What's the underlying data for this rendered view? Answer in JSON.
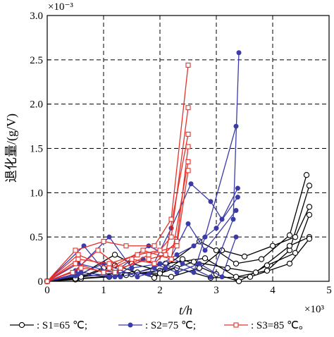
{
  "chart_data": {
    "type": "line",
    "title": "",
    "xlabel": "t/h",
    "ylabel": "退化量/(g/V)",
    "x_multiplier": "×10³",
    "y_multiplier": "×10⁻³",
    "xlim": [
      0,
      5
    ],
    "ylim": [
      0,
      3.0
    ],
    "x_ticks": [
      "0",
      "1",
      "2",
      "3",
      "4",
      "5"
    ],
    "y_ticks": [
      "0",
      "0.5",
      "1.0",
      "1.5",
      "2.0",
      "2.5",
      "3.0"
    ],
    "grid": "dashed",
    "legend_position": "bottom",
    "series": [
      {
        "name": "S1=65 ℃",
        "legend_label": ":  S1=65 ℃;",
        "color": "#000000",
        "marker": "open-circle",
        "lines": [
          [
            [
              0,
              0
            ],
            [
              0.55,
              0.06
            ],
            [
              1.2,
              0.3
            ],
            [
              1.5,
              0.2
            ],
            [
              2.0,
              0.12
            ],
            [
              2.7,
              0.45
            ],
            [
              3.0,
              0.35
            ],
            [
              3.35,
              0.2
            ],
            [
              3.8,
              0.25
            ],
            [
              4.3,
              0.52
            ],
            [
              4.6,
              1.2
            ]
          ],
          [
            [
              0,
              0
            ],
            [
              0.55,
              0.04
            ],
            [
              1.0,
              0.15
            ],
            [
              1.5,
              0.08
            ],
            [
              2.1,
              0.2
            ],
            [
              2.8,
              0.26
            ],
            [
              3.35,
              0.05
            ],
            [
              3.9,
              0.12
            ],
            [
              4.3,
              0.35
            ],
            [
              4.65,
              1.08
            ]
          ],
          [
            [
              0,
              0
            ],
            [
              0.6,
              0.03
            ],
            [
              1.1,
              0.05
            ],
            [
              1.6,
              0.1
            ],
            [
              2.2,
              0.05
            ],
            [
              2.7,
              0.15
            ],
            [
              3.1,
              0.35
            ],
            [
              3.5,
              0.28
            ],
            [
              4.0,
              0.4
            ],
            [
              4.4,
              0.5
            ],
            [
              4.65,
              0.84
            ]
          ],
          [
            [
              0,
              0
            ],
            [
              0.5,
              0.02
            ],
            [
              1.2,
              0.18
            ],
            [
              1.9,
              0.04
            ],
            [
              2.4,
              0.25
            ],
            [
              3.0,
              0.08
            ],
            [
              3.4,
              0.0
            ],
            [
              3.9,
              0.18
            ],
            [
              4.4,
              0.32
            ],
            [
              4.65,
              0.75
            ]
          ],
          [
            [
              0,
              0
            ],
            [
              0.6,
              0.05
            ],
            [
              1.3,
              0.1
            ],
            [
              2.0,
              0.09
            ],
            [
              2.6,
              0.22
            ],
            [
              3.2,
              0.15
            ],
            [
              3.7,
              0.1
            ],
            [
              4.3,
              0.4
            ],
            [
              4.65,
              0.5
            ]
          ],
          [
            [
              0,
              0
            ],
            [
              0.5,
              0.03
            ],
            [
              1.4,
              0.07
            ],
            [
              2.3,
              0.15
            ],
            [
              2.9,
              0.04
            ],
            [
              3.6,
              0.05
            ],
            [
              4.3,
              0.2
            ],
            [
              4.65,
              0.48
            ]
          ]
        ]
      },
      {
        "name": "S2=75 ℃",
        "legend_label": ":  S2=75 ℃;",
        "color": "#3a3aa8",
        "marker": "filled-circle",
        "lines": [
          [
            [
              0,
              0
            ],
            [
              0.65,
              0.4
            ],
            [
              1.1,
              0.05
            ],
            [
              1.8,
              0.4
            ],
            [
              2.4,
              0.2
            ],
            [
              2.9,
              0.05
            ],
            [
              3.3,
              0.7
            ],
            [
              3.4,
              2.58
            ]
          ],
          [
            [
              0,
              0
            ],
            [
              0.5,
              0.12
            ],
            [
              1.1,
              0.5
            ],
            [
              1.5,
              0.15
            ],
            [
              2.0,
              0.2
            ],
            [
              2.6,
              0.1
            ],
            [
              2.8,
              0.5
            ],
            [
              3.35,
              1.75
            ]
          ],
          [
            [
              0,
              0
            ],
            [
              0.55,
              0.2
            ],
            [
              1.2,
              0.1
            ],
            [
              1.8,
              0.08
            ],
            [
              2.2,
              0.6
            ],
            [
              2.55,
              1.1
            ],
            [
              2.9,
              0.9
            ],
            [
              3.1,
              0.7
            ],
            [
              3.38,
              1.05
            ]
          ],
          [
            [
              0,
              0
            ],
            [
              0.6,
              0.1
            ],
            [
              1.3,
              0.05
            ],
            [
              1.9,
              0.15
            ],
            [
              2.3,
              0.3
            ],
            [
              2.6,
              0.4
            ],
            [
              3.0,
              0.6
            ],
            [
              3.38,
              0.95
            ]
          ],
          [
            [
              0,
              0
            ],
            [
              0.5,
              0.06
            ],
            [
              1.0,
              0.2
            ],
            [
              1.6,
              0.05
            ],
            [
              2.1,
              0.15
            ],
            [
              2.5,
              0.65
            ],
            [
              2.8,
              0.35
            ],
            [
              3.35,
              0.8
            ]
          ],
          [
            [
              0,
              0
            ],
            [
              0.55,
              0.08
            ],
            [
              1.2,
              0.05
            ],
            [
              1.7,
              0.25
            ],
            [
              2.3,
              0.1
            ],
            [
              2.7,
              0.2
            ],
            [
              3.1,
              0.05
            ],
            [
              3.35,
              0.5
            ]
          ]
        ]
      },
      {
        "name": "S3=85 ℃",
        "legend_label": ":  S3=85 ℃。",
        "color": "#e8302a",
        "marker": "open-square",
        "lines": [
          [
            [
              0,
              0
            ],
            [
              0.5,
              0.35
            ],
            [
              1.0,
              0.45
            ],
            [
              1.4,
              0.4
            ],
            [
              1.9,
              0.4
            ],
            [
              2.2,
              0.7
            ],
            [
              2.5,
              2.44
            ]
          ],
          [
            [
              0,
              0
            ],
            [
              0.55,
              0.25
            ],
            [
              1.1,
              0.2
            ],
            [
              1.6,
              0.3
            ],
            [
              2.0,
              0.35
            ],
            [
              2.2,
              0.5
            ],
            [
              2.5,
              1.96
            ]
          ],
          [
            [
              0,
              0
            ],
            [
              0.45,
              0.1
            ],
            [
              0.9,
              0.35
            ],
            [
              1.3,
              0.15
            ],
            [
              1.8,
              0.25
            ],
            [
              2.1,
              0.3
            ],
            [
              2.5,
              1.66
            ]
          ],
          [
            [
              0,
              0
            ],
            [
              0.5,
              0.2
            ],
            [
              1.0,
              0.1
            ],
            [
              1.5,
              0.25
            ],
            [
              1.9,
              0.2
            ],
            [
              2.3,
              0.45
            ],
            [
              2.5,
              1.52
            ]
          ],
          [
            [
              0,
              0
            ],
            [
              0.55,
              0.3
            ],
            [
              1.1,
              0.15
            ],
            [
              1.7,
              0.35
            ],
            [
              2.2,
              0.25
            ],
            [
              2.5,
              1.35
            ]
          ],
          [
            [
              0,
              0
            ],
            [
              0.6,
              0.15
            ],
            [
              1.2,
              0.1
            ],
            [
              1.8,
              0.3
            ],
            [
              2.3,
              0.4
            ],
            [
              2.5,
              1.25
            ]
          ]
        ]
      }
    ]
  }
}
